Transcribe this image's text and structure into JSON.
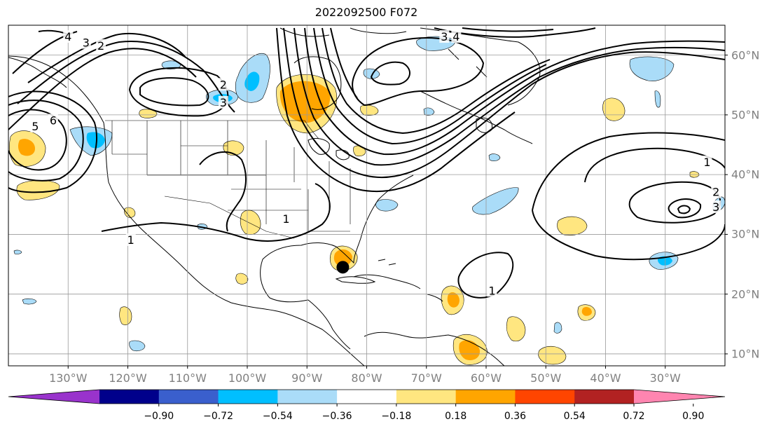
{
  "title": "2022092500 F072",
  "lon_labels": [
    "130°W",
    "120°W",
    "110°W",
    "100°W",
    "90°W",
    "80°W",
    "70°W",
    "60°W",
    "50°W",
    "40°W",
    "30°W"
  ],
  "lat_labels": [
    "60°N",
    "50°N",
    "40°N",
    "30°N",
    "20°N",
    "10°N"
  ],
  "colorbar": {
    "tick_labels": [
      "−0.90",
      "−0.72",
      "−0.54",
      "−0.36",
      "−0.18",
      "0.18",
      "0.36",
      "0.54",
      "0.72",
      "0.90"
    ],
    "colors": [
      "#9933cc",
      "#00008b",
      "#3a5fcd",
      "#00bfff",
      "#aadcf8",
      "#ffffff",
      "#ffe680",
      "#ffa500",
      "#ff4500",
      "#b22222",
      "#ff85b0"
    ]
  },
  "contour_labels": [
    {
      "text": "4",
      "lon": -130,
      "lat": 63
    },
    {
      "text": "3",
      "lon": -127,
      "lat": 62
    },
    {
      "text": "2",
      "lon": -124.5,
      "lat": 61.5
    },
    {
      "text": "2",
      "lon": -104,
      "lat": 55
    },
    {
      "text": "3",
      "lon": -104,
      "lat": 52
    },
    {
      "text": "6",
      "lon": -132.5,
      "lat": 49
    },
    {
      "text": "5",
      "lon": -135.5,
      "lat": 48
    },
    {
      "text": "3",
      "lon": -67,
      "lat": 63
    },
    {
      "text": "4",
      "lon": -65,
      "lat": 63
    },
    {
      "text": "1",
      "lon": -93.5,
      "lat": 32.5
    },
    {
      "text": "1",
      "lon": -119.5,
      "lat": 29
    },
    {
      "text": "1",
      "lon": -23,
      "lat": 42
    },
    {
      "text": "2",
      "lon": -21.5,
      "lat": 37
    },
    {
      "text": "3",
      "lon": -21.5,
      "lat": 34.5
    },
    {
      "text": "1",
      "lon": -59,
      "lat": 20.5
    }
  ],
  "marker": {
    "name": "storm-center",
    "lon": -84,
    "lat": 24.5
  }
}
